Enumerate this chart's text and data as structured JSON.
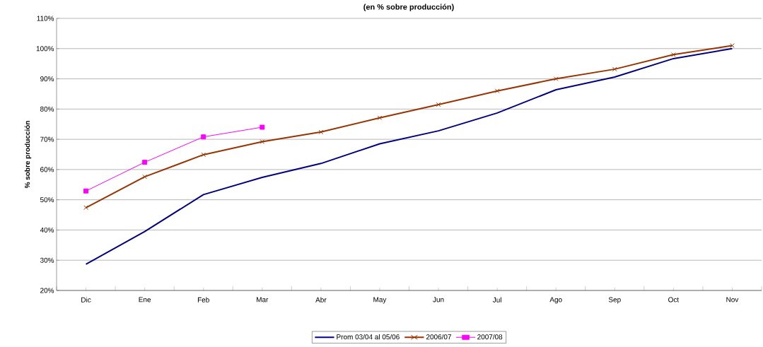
{
  "chart_data": {
    "type": "line",
    "subtitle": "(en % sobre producción)",
    "ylabel": "% sobre producción",
    "categories": [
      "Dic",
      "Ene",
      "Feb",
      "Mar",
      "Abr",
      "May",
      "Jun",
      "Jul",
      "Ago",
      "Sep",
      "Oct",
      "Nov"
    ],
    "series": [
      {
        "name": "Prom 03/04 al 05/06",
        "color": "#000080",
        "marker": "none",
        "values": [
          28.7,
          39.5,
          51.7,
          57.4,
          62,
          68.5,
          72.8,
          78.7,
          86.4,
          90.6,
          96.7,
          100
        ]
      },
      {
        "name": "2006/07",
        "color": "#993300",
        "marker": "cross",
        "values": [
          47.4,
          57.6,
          64.9,
          69.2,
          72.4,
          77.1,
          81.5,
          86,
          90,
          93.2,
          98,
          101
        ]
      },
      {
        "name": "2007/08",
        "color": "#ff00ff",
        "marker": "square",
        "values": [
          52.9,
          62.4,
          70.8,
          74,
          null,
          null,
          null,
          null,
          null,
          null,
          null,
          null
        ]
      }
    ],
    "ylim": [
      20,
      110
    ],
    "yticks": [
      {
        "value": 20,
        "label": "20%"
      },
      {
        "value": 30,
        "label": "30%"
      },
      {
        "value": 40,
        "label": "40%"
      },
      {
        "value": 50,
        "label": "50%"
      },
      {
        "value": 60,
        "label": "60%"
      },
      {
        "value": 70,
        "label": "70%"
      },
      {
        "value": 80,
        "label": "80%"
      },
      {
        "value": 90,
        "label": "90%"
      },
      {
        "value": 100,
        "label": "100%"
      },
      {
        "value": 110,
        "label": "110%"
      }
    ],
    "grid": "y",
    "legend": "bottom"
  }
}
